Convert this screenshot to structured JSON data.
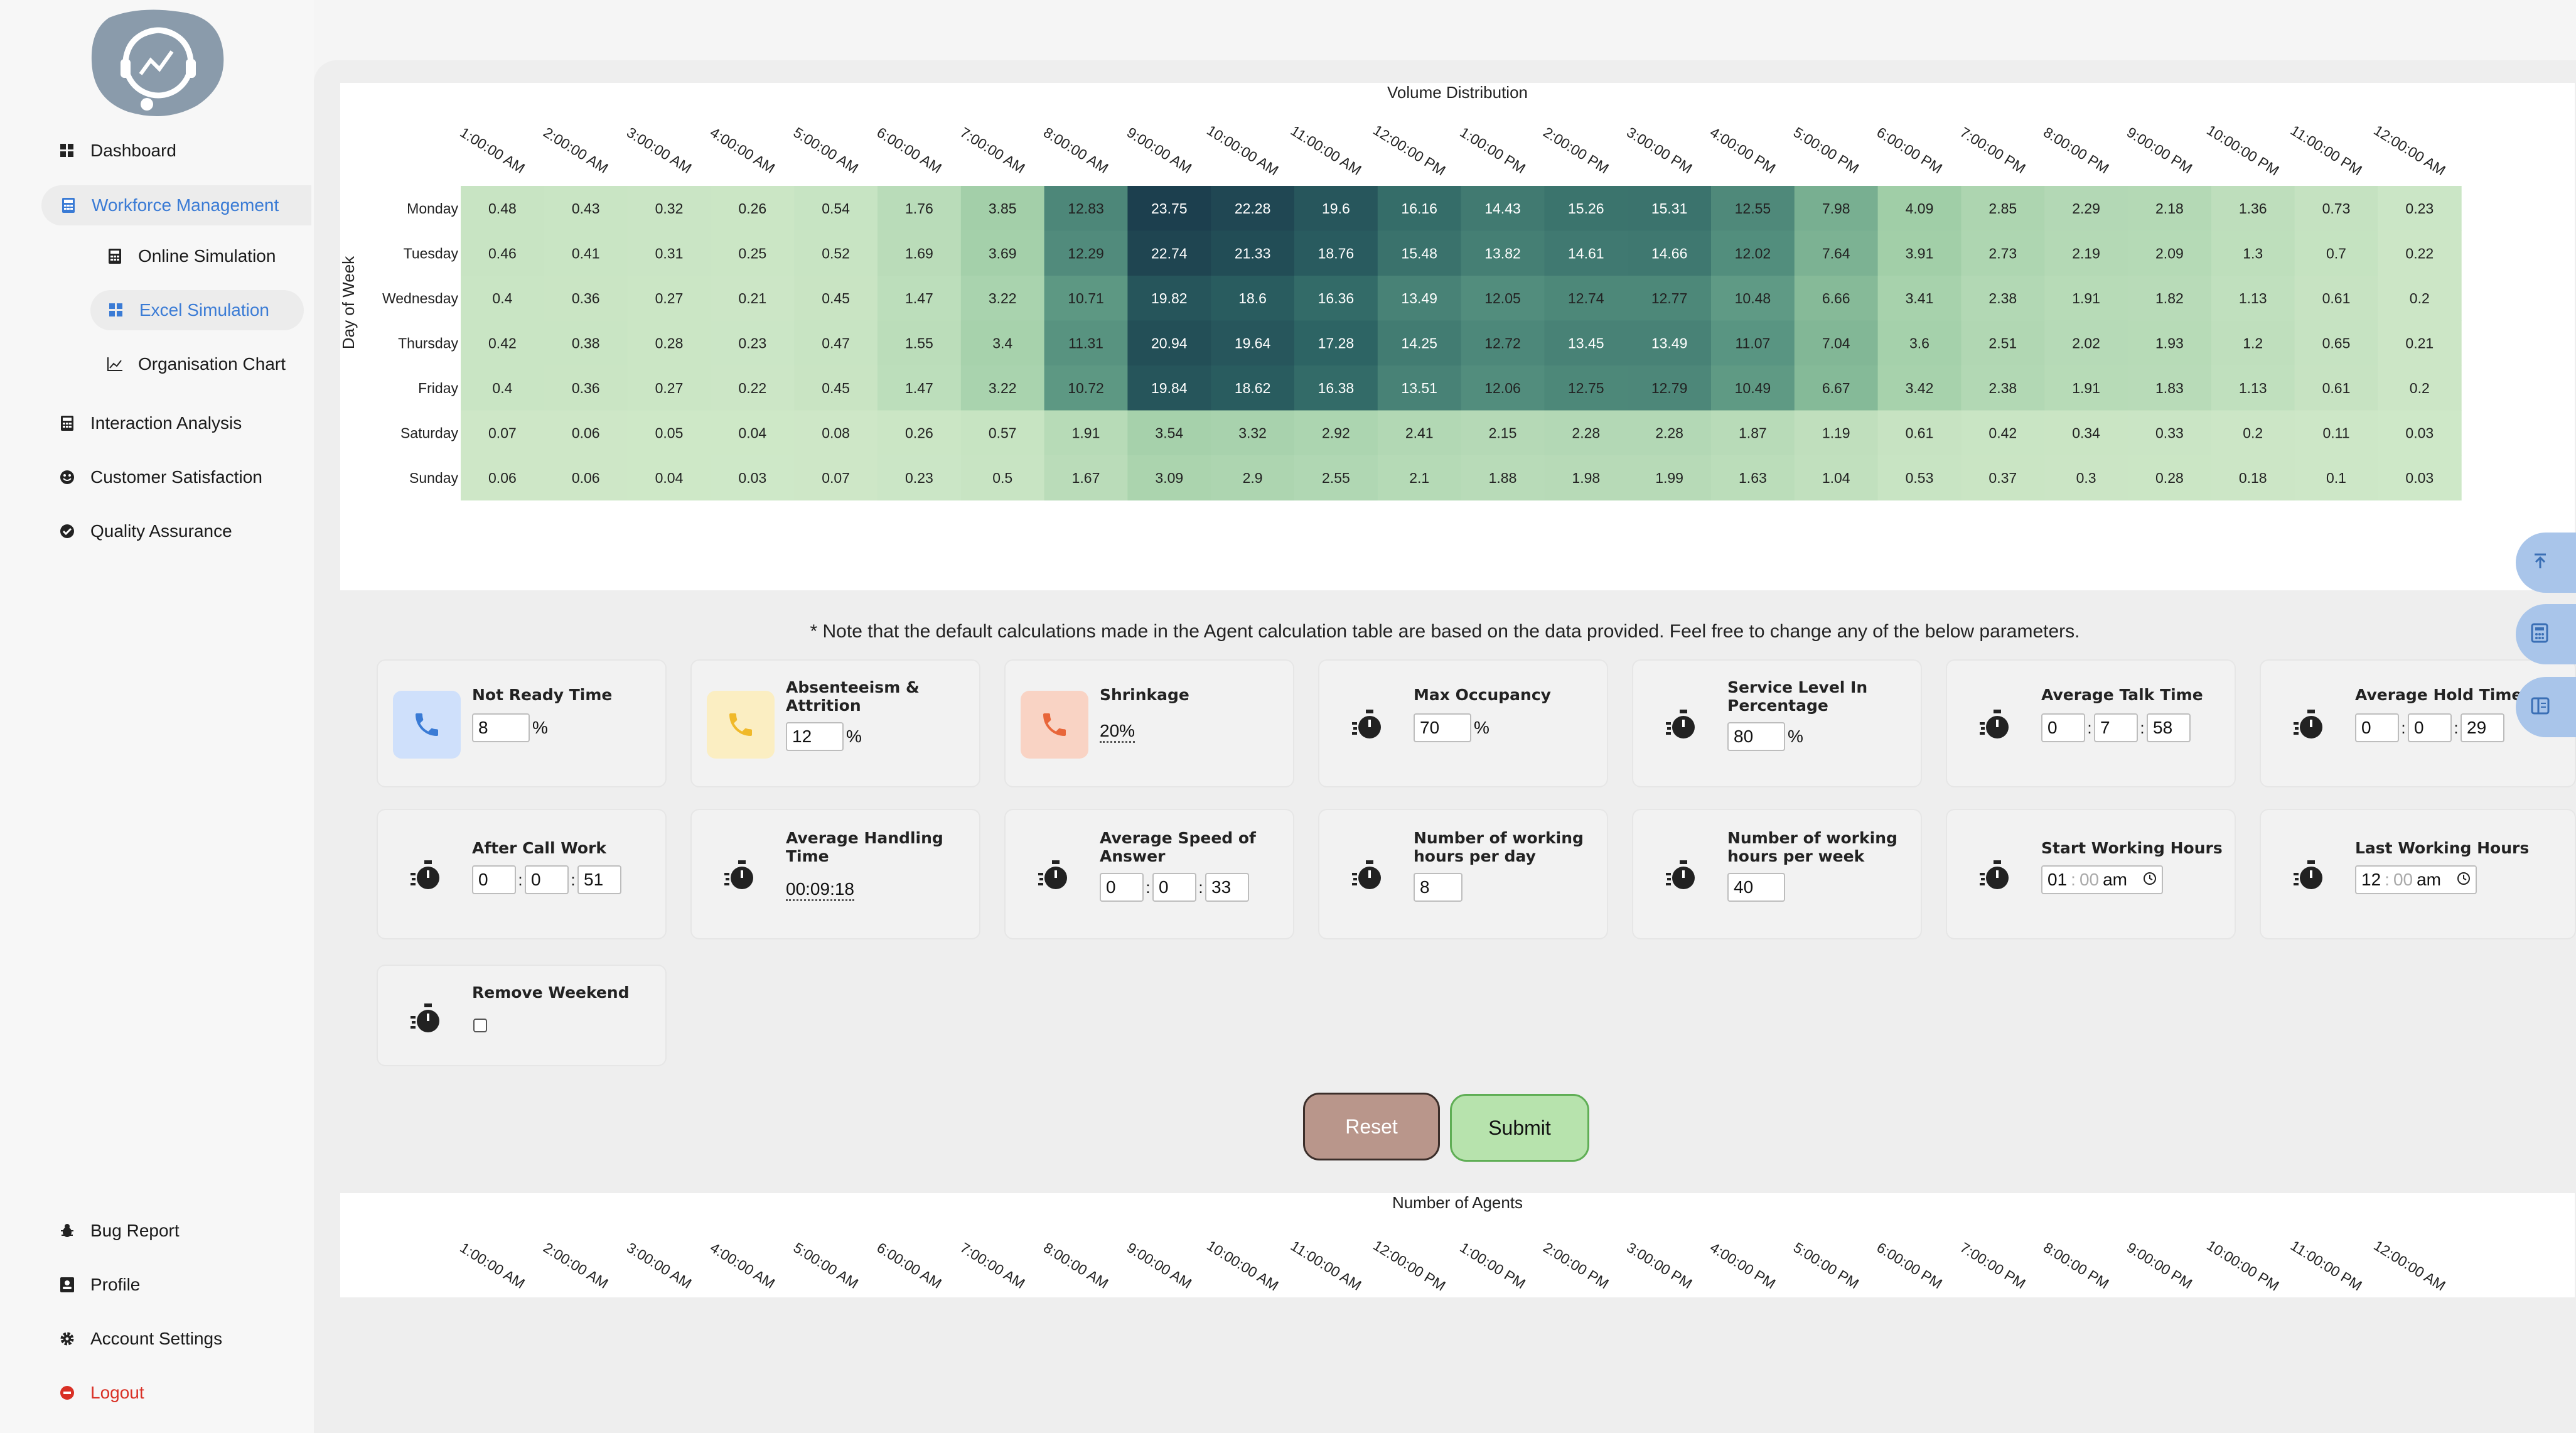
{
  "sidebar": {
    "items": [
      {
        "label": "Dashboard",
        "icon": "grid-icon"
      },
      {
        "label": "Workforce Management",
        "icon": "calculator-icon"
      },
      {
        "label": "Online Simulation",
        "icon": "calculator-icon"
      },
      {
        "label": "Excel Simulation",
        "icon": "grid-icon"
      },
      {
        "label": "Organisation Chart",
        "icon": "chart-icon"
      },
      {
        "label": "Interaction Analysis",
        "icon": "calculator-icon"
      },
      {
        "label": "Customer Satisfaction",
        "icon": "smile-icon"
      },
      {
        "label": "Quality Assurance",
        "icon": "check-circle-icon"
      }
    ],
    "bottom_items": [
      {
        "label": "Bug Report",
        "icon": "bug-icon"
      },
      {
        "label": "Profile",
        "icon": "id-card-icon"
      },
      {
        "label": "Account Settings",
        "icon": "gear-icon"
      },
      {
        "label": "Logout",
        "icon": "logout-icon"
      }
    ]
  },
  "heatmap": {
    "title": "Volume Distribution",
    "ylabel": "Day of Week"
  },
  "chart_data": {
    "type": "heatmap",
    "title": "Volume Distribution",
    "ylabel": "Day of Week",
    "x": [
      "1:00:00 AM",
      "2:00:00 AM",
      "3:00:00 AM",
      "4:00:00 AM",
      "5:00:00 AM",
      "6:00:00 AM",
      "7:00:00 AM",
      "8:00:00 AM",
      "9:00:00 AM",
      "10:00:00 AM",
      "11:00:00 AM",
      "12:00:00 PM",
      "1:00:00 PM",
      "2:00:00 PM",
      "3:00:00 PM",
      "4:00:00 PM",
      "5:00:00 PM",
      "6:00:00 PM",
      "7:00:00 PM",
      "8:00:00 PM",
      "9:00:00 PM",
      "10:00:00 PM",
      "11:00:00 PM",
      "12:00:00 AM"
    ],
    "y": [
      "Monday",
      "Tuesday",
      "Wednesday",
      "Thursday",
      "Friday",
      "Saturday",
      "Sunday"
    ],
    "values": [
      [
        0.48,
        0.43,
        0.32,
        0.26,
        0.54,
        1.76,
        3.85,
        12.83,
        23.75,
        22.28,
        19.6,
        16.16,
        14.43,
        15.26,
        15.31,
        12.55,
        7.98,
        4.09,
        2.85,
        2.29,
        2.18,
        1.36,
        0.73,
        0.23
      ],
      [
        0.46,
        0.41,
        0.31,
        0.25,
        0.52,
        1.69,
        3.69,
        12.29,
        22.74,
        21.33,
        18.76,
        15.48,
        13.82,
        14.61,
        14.66,
        12.02,
        7.64,
        3.91,
        2.73,
        2.19,
        2.09,
        1.3,
        0.7,
        0.22
      ],
      [
        0.4,
        0.36,
        0.27,
        0.21,
        0.45,
        1.47,
        3.22,
        10.71,
        19.82,
        18.6,
        16.36,
        13.49,
        12.05,
        12.74,
        12.77,
        10.48,
        6.66,
        3.41,
        2.38,
        1.91,
        1.82,
        1.13,
        0.61,
        0.2
      ],
      [
        0.42,
        0.38,
        0.28,
        0.23,
        0.47,
        1.55,
        3.4,
        11.31,
        20.94,
        19.64,
        17.28,
        14.25,
        12.72,
        13.45,
        13.49,
        11.07,
        7.04,
        3.6,
        2.51,
        2.02,
        1.93,
        1.2,
        0.65,
        0.21
      ],
      [
        0.4,
        0.36,
        0.27,
        0.22,
        0.45,
        1.47,
        3.22,
        10.72,
        19.84,
        18.62,
        16.38,
        13.51,
        12.06,
        12.75,
        12.79,
        10.49,
        6.67,
        3.42,
        2.38,
        1.91,
        1.83,
        1.13,
        0.61,
        0.2
      ],
      [
        0.07,
        0.06,
        0.05,
        0.04,
        0.08,
        0.26,
        0.57,
        1.91,
        3.54,
        3.32,
        2.92,
        2.41,
        2.15,
        2.28,
        2.28,
        1.87,
        1.19,
        0.61,
        0.42,
        0.34,
        0.33,
        0.2,
        0.11,
        0.03
      ],
      [
        0.06,
        0.06,
        0.04,
        0.03,
        0.07,
        0.23,
        0.5,
        1.67,
        3.09,
        2.9,
        2.55,
        2.1,
        1.88,
        1.98,
        1.99,
        1.63,
        1.04,
        0.53,
        0.37,
        0.3,
        0.28,
        0.18,
        0.1,
        0.03
      ]
    ],
    "colorscale": [
      "#cfe8c8",
      "#1c3f4e"
    ]
  },
  "note": "* Note that the default calculations made in the Agent calculation table are based on the data provided. Feel free to change any of the below parameters.",
  "cards": {
    "not_ready": {
      "label": "Not Ready Time",
      "value": "8",
      "unit": "%"
    },
    "absenteeism": {
      "label": "Absenteeism & Attrition",
      "value": "12",
      "unit": "%"
    },
    "shrinkage": {
      "label": "Shrinkage",
      "value": "20%"
    },
    "max_occupancy": {
      "label": "Max Occupancy",
      "value": "70",
      "unit": "%"
    },
    "service_level": {
      "label": "Service Level In Percentage",
      "value": "80",
      "unit": "%"
    },
    "avg_talk": {
      "label": "Average Talk Time",
      "h": "0",
      "m": "7",
      "s": "58"
    },
    "avg_hold": {
      "label": "Average Hold Time",
      "h": "0",
      "m": "0",
      "s": "29"
    },
    "acw": {
      "label": "After Call Work",
      "h": "0",
      "m": "0",
      "s": "51"
    },
    "aht": {
      "label": "Average Handling Time",
      "value": "00:09:18"
    },
    "asa": {
      "label": "Average Speed of Answer",
      "h": "0",
      "m": "0",
      "s": "33"
    },
    "hours_day": {
      "label": "Number of working hours per day",
      "value": "8"
    },
    "hours_week": {
      "label": "Number of working hours per week",
      "value": "40"
    },
    "start_hours": {
      "label": "Start Working Hours",
      "hh": "01",
      "mm": "00",
      "ampm": "am"
    },
    "last_hours": {
      "label": "Last Working Hours",
      "hh": "12",
      "mm": "00",
      "ampm": "am"
    },
    "remove_weekend": {
      "label": "Remove Weekend",
      "checked": false
    }
  },
  "buttons": {
    "reset": "Reset",
    "submit": "Submit"
  },
  "agents": {
    "title": "Number of Agents"
  },
  "agents_chart": {
    "x": [
      "1:00:00 AM",
      "2:00:00 AM",
      "3:00:00 AM",
      "4:00:00 AM",
      "5:00:00 AM",
      "6:00:00 AM",
      "7:00:00 AM",
      "8:00:00 AM",
      "9:00:00 AM",
      "10:00:00 AM",
      "11:00:00 AM",
      "12:00:00 PM",
      "1:00:00 PM",
      "2:00:00 PM",
      "3:00:00 PM",
      "4:00:00 PM",
      "5:00:00 PM",
      "6:00:00 PM",
      "7:00:00 PM",
      "8:00:00 PM",
      "9:00:00 PM",
      "10:00:00 PM",
      "11:00:00 PM",
      "12:00:00 AM"
    ]
  },
  "colors": {
    "accent": "#3a7bd5",
    "danger": "#d93025",
    "fab": "#a9c5ea"
  }
}
